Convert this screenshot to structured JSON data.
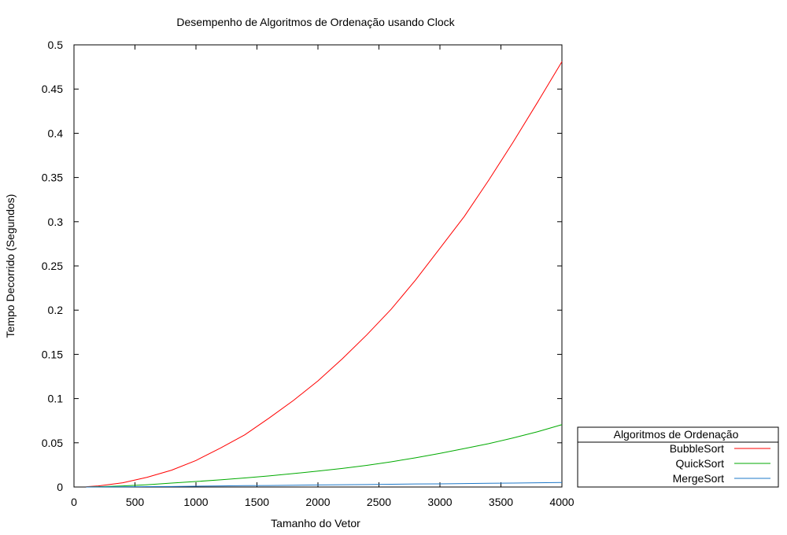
{
  "chart_data": {
    "type": "line",
    "title": "Desempenho de Algoritmos de Ordenação usando Clock",
    "xlabel": "Tamanho do Vetor",
    "ylabel": "Tempo Decorrido (Segundos)",
    "xlim": [
      0,
      4000
    ],
    "ylim": [
      0,
      0.5
    ],
    "xticks": [
      "0",
      "500",
      "1000",
      "1500",
      "2000",
      "2500",
      "3000",
      "3500",
      "4000"
    ],
    "yticks": [
      "0",
      "0.05",
      "0.1",
      "0.15",
      "0.2",
      "0.25",
      "0.3",
      "0.35",
      "0.4",
      "0.45",
      "0.5"
    ],
    "grid": false,
    "legend": {
      "title": "Algoritmos de Ordenação",
      "placement": "outside-right-bottom"
    },
    "x": [
      100,
      200,
      400,
      600,
      800,
      1000,
      1200,
      1400,
      1600,
      1800,
      2000,
      2200,
      2400,
      2600,
      2800,
      3000,
      3200,
      3400,
      3600,
      3800,
      4000
    ],
    "series": [
      {
        "name": "BubbleSort",
        "color": "#ff0000",
        "values": [
          0.0003,
          0.0012,
          0.0048,
          0.011,
          0.019,
          0.03,
          0.044,
          0.059,
          0.078,
          0.098,
          0.12,
          0.145,
          0.172,
          0.201,
          0.234,
          0.27,
          0.306,
          0.347,
          0.39,
          0.435,
          0.481
        ]
      },
      {
        "name": "QuickSort",
        "color": "#00aa00",
        "values": [
          0.0001,
          0.0003,
          0.0012,
          0.0026,
          0.0044,
          0.0062,
          0.0081,
          0.0102,
          0.0126,
          0.0152,
          0.018,
          0.021,
          0.0245,
          0.0285,
          0.033,
          0.038,
          0.0435,
          0.049,
          0.0555,
          0.0625,
          0.0705
        ]
      },
      {
        "name": "MergeSort",
        "color": "#1e78c8",
        "values": [
          0.0,
          0.0001,
          0.0002,
          0.0004,
          0.0006,
          0.0009,
          0.0012,
          0.0015,
          0.0017,
          0.002,
          0.0023,
          0.0026,
          0.0028,
          0.0031,
          0.0034,
          0.0036,
          0.0039,
          0.0042,
          0.0045,
          0.0048,
          0.0051
        ]
      }
    ]
  }
}
